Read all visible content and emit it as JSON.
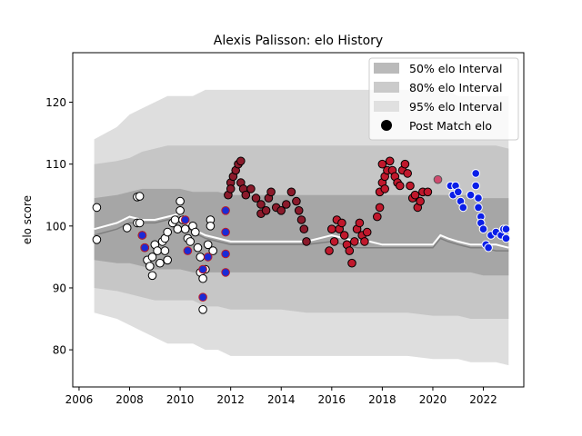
{
  "chart_data": {
    "type": "scatter",
    "title": "Alexis Palisson: elo History",
    "xlabel": "",
    "ylabel": "elo score",
    "xlim": [
      2005.75,
      2023.6
    ],
    "ylim": [
      74,
      128
    ],
    "xticks": [
      2006,
      2008,
      2010,
      2012,
      2014,
      2016,
      2018,
      2020,
      2022
    ],
    "yticks": [
      80,
      90,
      100,
      110,
      120
    ],
    "legend": {
      "position": "top-right",
      "entries": [
        "50% elo Interval",
        "80% elo Interval",
        "95% elo Interval",
        "Post Match elo"
      ]
    },
    "bands": {
      "x": [
        2006.6,
        2007.5,
        2008.0,
        2008.5,
        2009.0,
        2009.5,
        2010.0,
        2010.5,
        2011.0,
        2011.5,
        2012.0,
        2013.0,
        2014.0,
        2015.0,
        2016.0,
        2017.0,
        2018.0,
        2019.0,
        2020.0,
        2020.5,
        2021.0,
        2021.5,
        2022.0,
        2022.5,
        2023.0
      ],
      "p95_low": [
        86,
        85,
        84,
        83,
        82,
        81,
        81,
        81,
        80,
        80,
        79,
        79,
        79,
        79,
        79,
        79,
        79,
        79,
        78.5,
        78.5,
        78.5,
        78,
        78,
        78,
        77.5
      ],
      "p95_high": [
        114,
        116,
        118,
        119,
        120,
        121,
        121,
        121,
        122,
        122,
        122,
        122,
        122,
        122,
        122,
        122,
        122,
        122,
        122,
        122,
        121,
        121,
        121,
        121,
        121
      ],
      "p80_low": [
        90,
        89.5,
        89,
        88.5,
        88,
        88,
        88,
        88,
        87,
        87,
        86.5,
        86.5,
        86.5,
        86,
        86,
        86,
        86,
        86,
        85.5,
        85.5,
        85.5,
        85,
        85,
        85,
        85
      ],
      "p80_high": [
        110,
        110.5,
        111,
        112,
        112.5,
        113,
        113,
        113,
        113,
        113,
        113,
        113,
        113,
        113,
        113,
        113,
        113,
        113,
        113,
        113,
        113,
        113,
        113,
        113,
        112.5
      ],
      "p50_low": [
        94.5,
        94,
        94,
        93.5,
        93,
        93,
        93,
        92.5,
        92.5,
        92.5,
        92.5,
        92.5,
        92.5,
        92.5,
        92.5,
        92.5,
        92.5,
        92.5,
        92.5,
        92.5,
        92.5,
        92.5,
        92,
        92,
        92
      ],
      "p50_high": [
        104.5,
        105,
        105.5,
        106,
        106,
        106,
        106,
        105.5,
        105.5,
        105.5,
        105,
        105,
        105,
        105,
        105,
        105,
        105,
        105,
        105,
        105,
        105,
        105,
        104.5,
        104.5,
        104.5
      ]
    },
    "mean_line": {
      "x": [
        2006.6,
        2007.5,
        2008.0,
        2008.5,
        2009.0,
        2009.5,
        2010.0,
        2010.5,
        2011.0,
        2011.5,
        2012.0,
        2013.0,
        2014.0,
        2015.0,
        2016.0,
        2016.5,
        2017.0,
        2017.5,
        2018.0,
        2019.0,
        2020.0,
        2020.3,
        2020.6,
        2021.0,
        2021.5,
        2022.0,
        2022.5,
        2023.0
      ],
      "y": [
        98.5,
        99.5,
        100.5,
        100.5,
        100.5,
        101,
        101,
        99,
        98,
        97.5,
        97,
        97,
        97,
        97,
        97.5,
        97,
        96.5,
        96.5,
        96.5,
        96.5,
        96.5,
        98,
        97.5,
        97,
        96.5,
        96.5,
        96,
        96
      ]
    },
    "median_line": {
      "x": [
        2006.6,
        2007.5,
        2008.0,
        2008.5,
        2009.0,
        2009.5,
        2010.0,
        2010.5,
        2011.0,
        2011.5,
        2012.0,
        2013.0,
        2014.0,
        2015.0,
        2016.0,
        2016.5,
        2017.0,
        2017.5,
        2018.0,
        2019.0,
        2020.0,
        2020.3,
        2020.6,
        2021.0,
        2021.5,
        2022.0,
        2022.5,
        2023.0
      ],
      "y": [
        99.5,
        100.5,
        101.5,
        101,
        101,
        101.5,
        102,
        99.5,
        98.5,
        98,
        97.5,
        97.5,
        97.5,
        97.5,
        98.5,
        98,
        97.5,
        97.5,
        97,
        97,
        97,
        98.5,
        98,
        97.5,
        97,
        97,
        97,
        96.5
      ]
    },
    "series": [
      {
        "name": "Post Match elo",
        "groups": [
          {
            "fill": "#ffffff",
            "edge": "#000000",
            "points": [
              [
                2006.7,
                103
              ],
              [
                2006.7,
                97.8
              ],
              [
                2007.9,
                99.7
              ],
              [
                2008.3,
                104.7
              ],
              [
                2008.4,
                104.8
              ],
              [
                2008.3,
                100.5
              ],
              [
                2008.4,
                100.5
              ],
              [
                2008.5,
                98.5
              ],
              [
                2008.6,
                96.5
              ],
              [
                2008.7,
                94.5
              ],
              [
                2008.8,
                93.5
              ],
              [
                2008.9,
                92
              ],
              [
                2008.9,
                95
              ],
              [
                2009.0,
                97
              ],
              [
                2009.1,
                96
              ],
              [
                2009.2,
                94
              ],
              [
                2009.3,
                97.5
              ],
              [
                2009.4,
                98
              ],
              [
                2009.4,
                96
              ],
              [
                2009.5,
                94.5
              ],
              [
                2009.5,
                99
              ],
              [
                2009.7,
                100.5
              ],
              [
                2009.8,
                101
              ],
              [
                2009.9,
                99.5
              ],
              [
                2010.0,
                104
              ],
              [
                2010.0,
                102.5
              ],
              [
                2010.1,
                101
              ],
              [
                2010.2,
                99.5
              ],
              [
                2010.3,
                98
              ],
              [
                2010.4,
                97.5
              ],
              [
                2010.5,
                100
              ],
              [
                2010.6,
                99
              ],
              [
                2010.7,
                96.5
              ],
              [
                2010.8,
                95
              ],
              [
                2010.8,
                92.5
              ],
              [
                2010.9,
                91.5
              ],
              [
                2010.9,
                86.5
              ],
              [
                2011.0,
                93
              ],
              [
                2011.1,
                97
              ],
              [
                2011.2,
                101
              ],
              [
                2011.2,
                100
              ],
              [
                2011.3,
                96
              ]
            ]
          },
          {
            "fill": "#1a2bd6",
            "edge": "#c01c28",
            "points": [
              [
                2008.5,
                98.5
              ],
              [
                2008.6,
                96.5
              ],
              [
                2010.2,
                101
              ],
              [
                2010.3,
                96
              ],
              [
                2010.9,
                93
              ],
              [
                2010.9,
                88.5
              ],
              [
                2011.1,
                95
              ],
              [
                2011.8,
                102.5
              ],
              [
                2011.8,
                99
              ],
              [
                2011.8,
                95.5
              ],
              [
                2011.8,
                92.5
              ]
            ]
          },
          {
            "fill": "#8b1a2b",
            "edge": "#000000",
            "points": [
              [
                2011.9,
                105
              ],
              [
                2012.0,
                107
              ],
              [
                2012.0,
                106
              ],
              [
                2012.1,
                108
              ],
              [
                2012.2,
                109
              ],
              [
                2012.3,
                110
              ],
              [
                2012.4,
                110.5
              ],
              [
                2012.4,
                107
              ],
              [
                2012.5,
                106
              ],
              [
                2012.6,
                105
              ],
              [
                2012.8,
                106
              ],
              [
                2013.0,
                104.5
              ],
              [
                2013.2,
                103.5
              ],
              [
                2013.2,
                102
              ],
              [
                2013.4,
                102.5
              ],
              [
                2013.5,
                104.5
              ],
              [
                2013.6,
                105.5
              ],
              [
                2013.8,
                103
              ],
              [
                2014.0,
                102.5
              ],
              [
                2014.2,
                103.5
              ],
              [
                2014.4,
                105.5
              ],
              [
                2014.6,
                104
              ],
              [
                2014.7,
                102.5
              ],
              [
                2014.8,
                101
              ],
              [
                2014.9,
                99.5
              ],
              [
                2015.0,
                97.5
              ]
            ]
          },
          {
            "fill": "#c0182c",
            "edge": "#000000",
            "points": [
              [
                2015.9,
                96
              ],
              [
                2016.0,
                99.5
              ],
              [
                2016.1,
                97.5
              ],
              [
                2016.2,
                101
              ],
              [
                2016.3,
                99.5
              ],
              [
                2016.4,
                100.5
              ],
              [
                2016.5,
                98.5
              ],
              [
                2016.6,
                97
              ],
              [
                2016.7,
                96
              ],
              [
                2016.8,
                94
              ],
              [
                2016.9,
                97.5
              ],
              [
                2017.0,
                99.5
              ],
              [
                2017.1,
                100.5
              ],
              [
                2017.2,
                98.5
              ],
              [
                2017.3,
                97.5
              ],
              [
                2017.4,
                99
              ],
              [
                2017.8,
                101.5
              ],
              [
                2017.9,
                103
              ],
              [
                2017.9,
                105.5
              ],
              [
                2018.0,
                107
              ],
              [
                2018.0,
                110
              ],
              [
                2018.1,
                108
              ],
              [
                2018.1,
                106
              ],
              [
                2018.2,
                109
              ],
              [
                2018.3,
                110.5
              ],
              [
                2018.4,
                109
              ],
              [
                2018.5,
                108
              ],
              [
                2018.6,
                107
              ],
              [
                2018.7,
                106.5
              ],
              [
                2018.8,
                109
              ],
              [
                2018.9,
                110
              ],
              [
                2019.0,
                108.5
              ],
              [
                2019.1,
                106.5
              ],
              [
                2019.2,
                104.5
              ],
              [
                2019.3,
                105
              ],
              [
                2019.4,
                103
              ],
              [
                2019.5,
                104
              ],
              [
                2019.6,
                105.5
              ],
              [
                2019.8,
                105.5
              ]
            ]
          },
          {
            "fill": "#d04a6e",
            "edge": "#555555",
            "points": [
              [
                2020.2,
                107.5
              ]
            ]
          },
          {
            "fill": "#0a1ee8",
            "edge": "#ffffff",
            "points": [
              [
                2020.7,
                106.5
              ],
              [
                2020.8,
                105
              ],
              [
                2020.9,
                106.5
              ],
              [
                2021.0,
                105.5
              ],
              [
                2021.1,
                104
              ],
              [
                2021.2,
                103
              ],
              [
                2021.5,
                105
              ],
              [
                2021.7,
                108.5
              ],
              [
                2021.7,
                106.5
              ],
              [
                2021.8,
                104.5
              ],
              [
                2021.8,
                103
              ],
              [
                2021.9,
                101.5
              ],
              [
                2021.9,
                100.5
              ],
              [
                2022.0,
                99.5
              ],
              [
                2022.1,
                97
              ],
              [
                2022.2,
                96.5
              ],
              [
                2022.3,
                98.5
              ],
              [
                2022.5,
                99
              ],
              [
                2022.7,
                98.5
              ],
              [
                2022.8,
                99.5
              ],
              [
                2022.9,
                99.5
              ],
              [
                2022.9,
                98
              ]
            ]
          }
        ]
      }
    ],
    "colors": {
      "band50": "#8c8c8c",
      "band80": "#bdbdbd",
      "band95": "#dedede",
      "mean_line": "#7f7f7f",
      "median_line": "#ffffff"
    }
  }
}
